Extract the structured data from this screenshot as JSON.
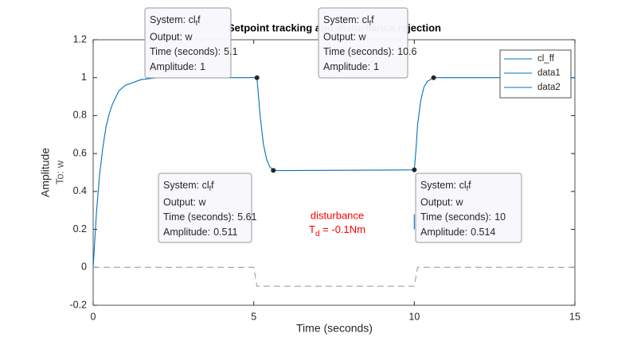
{
  "chart_data": {
    "type": "line",
    "title": "Setpoint tracking and disturbance rejection",
    "xlabel": "Time (seconds)",
    "ylabel": "Amplitude",
    "ylabel2": "To: w",
    "xlim": [
      0,
      15
    ],
    "ylim": [
      -0.2,
      1.2
    ],
    "xticks": [
      0,
      5,
      10,
      15
    ],
    "yticks": [
      -0.2,
      0,
      0.2,
      0.4,
      0.6,
      0.8,
      1,
      1.2
    ],
    "legend": "upper right",
    "series": [
      {
        "name": "cl_ff",
        "color": "#0072bd",
        "dash": false,
        "x": [
          0,
          0.1,
          0.2,
          0.3,
          0.4,
          0.5,
          0.6,
          0.8,
          1,
          1.5,
          2,
          3,
          5.1,
          5.15,
          5.2,
          5.3,
          5.4,
          5.5,
          5.61,
          6,
          10,
          10.05,
          10.1,
          10.2,
          10.3,
          10.4,
          10.6,
          11,
          15
        ],
        "values": [
          0,
          0.28,
          0.49,
          0.63,
          0.74,
          0.81,
          0.86,
          0.93,
          0.96,
          0.99,
          1,
          1,
          1,
          0.9,
          0.8,
          0.65,
          0.57,
          0.53,
          0.511,
          0.51,
          0.514,
          0.62,
          0.75,
          0.88,
          0.95,
          0.98,
          1,
          1,
          1
        ]
      },
      {
        "name": "data1",
        "color": "#0072bd",
        "dash": false,
        "x": [
          10,
          10
        ],
        "values": [
          0.2,
          0.28
        ]
      },
      {
        "name": "data2",
        "color": "#a0a0a0",
        "dash": true,
        "x": [
          0,
          5,
          5.1,
          10,
          10.1,
          15
        ],
        "values": [
          0,
          0,
          -0.1,
          -0.1,
          0,
          0
        ]
      }
    ],
    "annotation": {
      "text": "disturbance",
      "symbol": "T",
      "sub": "d",
      "rest": " = -0.1Nm",
      "color": "#ff0000",
      "x": 7.6,
      "y": 0.27
    },
    "data_tips": [
      {
        "system": "System: cl",
        "system_sub": "f",
        "system_end": "f",
        "output": "Output: w",
        "time_label": "Time (seconds):",
        "x": 5.1,
        "amp_label": "Amplitude:",
        "y": 1
      },
      {
        "system": "System: cl",
        "system_sub": "f",
        "system_end": "f",
        "output": "Output: w",
        "time_label": "Time (seconds):",
        "x": 10.6,
        "amp_label": "Amplitude:",
        "y": 1
      },
      {
        "system": "System: cl",
        "system_sub": "f",
        "system_end": "f",
        "output": "Output: w",
        "time_label": "Time (seconds):",
        "x": 5.61,
        "amp_label": "Amplitude:",
        "y": 0.511
      },
      {
        "system": "System: cl",
        "system_sub": "f",
        "system_end": "f",
        "output": "Output: w",
        "time_label": "Time (seconds):",
        "x": 10,
        "amp_label": "Amplitude:",
        "y": 0.514
      }
    ]
  }
}
